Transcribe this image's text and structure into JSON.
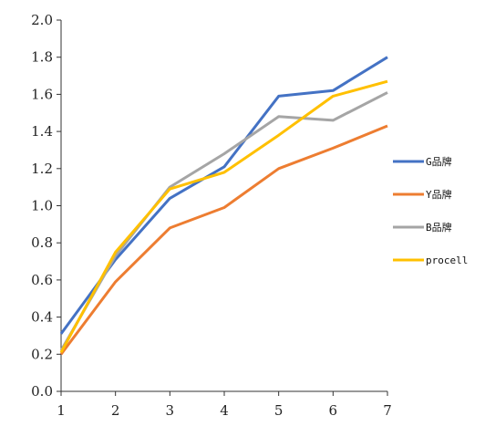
{
  "chart_data": {
    "type": "line",
    "title": "",
    "xlabel": "",
    "ylabel": "",
    "x": [
      1,
      2,
      3,
      4,
      5,
      6,
      7
    ],
    "xlim": [
      1,
      7
    ],
    "ylim": [
      0.0,
      2.0
    ],
    "y_ticks": [
      "0.0",
      "0.2",
      "0.4",
      "0.6",
      "0.8",
      "1.0",
      "1.2",
      "1.4",
      "1.6",
      "1.8",
      "2.0"
    ],
    "x_ticks": [
      "1",
      "2",
      "3",
      "4",
      "5",
      "6",
      "7"
    ],
    "grid": false,
    "legend_position": "right",
    "series": [
      {
        "name": "G品牌",
        "color": "#4472C4",
        "values": [
          0.31,
          0.71,
          1.04,
          1.21,
          1.59,
          1.62,
          1.8
        ]
      },
      {
        "name": "Y品牌",
        "color": "#ED7D31",
        "values": [
          0.2,
          0.59,
          0.88,
          0.99,
          1.2,
          1.31,
          1.43
        ]
      },
      {
        "name": "B品牌",
        "color": "#A5A5A5",
        "values": [
          0.22,
          0.73,
          1.1,
          1.28,
          1.48,
          1.46,
          1.61
        ]
      },
      {
        "name": "procell",
        "color": "#FFC000",
        "values": [
          0.21,
          0.75,
          1.09,
          1.18,
          1.38,
          1.59,
          1.67
        ]
      }
    ]
  }
}
